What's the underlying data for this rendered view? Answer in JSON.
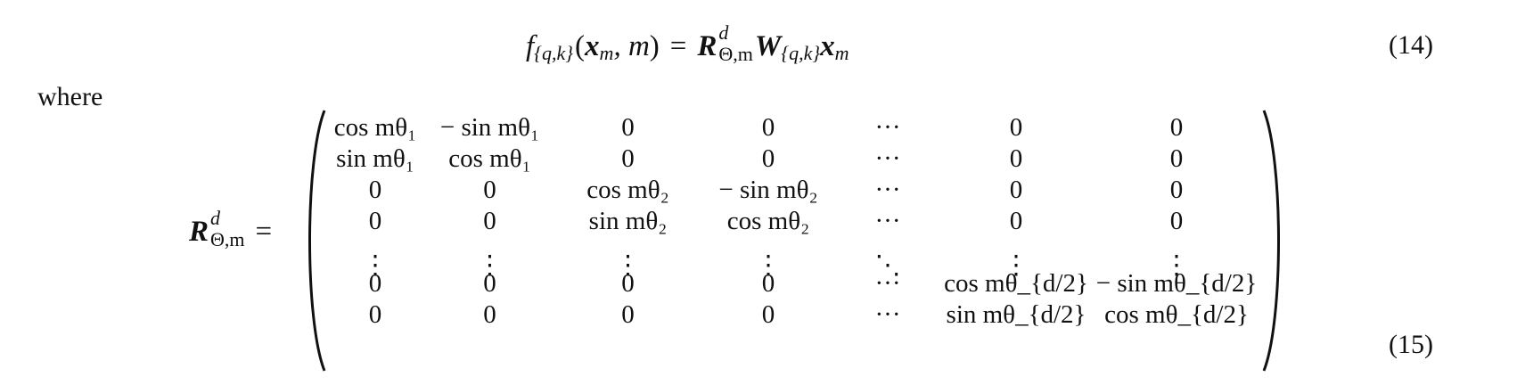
{
  "eq14": {
    "number": "(14)",
    "f": "f",
    "f_sub": "{q,k}",
    "lparen": "(",
    "x": "x",
    "x_sub": "m",
    "comma_m": ", m",
    "rparen": ")",
    "equals": "=",
    "R": "R",
    "R_sup": "d",
    "R_sub": "Θ,m",
    "W": "W",
    "W_sub": "{q,k}",
    "x2": "x",
    "x2_sub": "m"
  },
  "where_text": "where",
  "eq15": {
    "number": "(15)",
    "lhs_R": "R",
    "lhs_sup": "d",
    "lhs_sub": "Θ,m",
    "equals": "=",
    "matrix": [
      [
        "cos mθ₁",
        "− sin mθ₁",
        "0",
        "0",
        "···",
        "0",
        "0"
      ],
      [
        "sin mθ₁",
        "cos mθ₁",
        "0",
        "0",
        "···",
        "0",
        "0"
      ],
      [
        "0",
        "0",
        "cos mθ₂",
        "− sin mθ₂",
        "···",
        "0",
        "0"
      ],
      [
        "0",
        "0",
        "sin mθ₂",
        "cos mθ₂",
        "···",
        "0",
        "0"
      ],
      [
        "⋮",
        "⋮",
        "⋮",
        "⋮",
        "⋱",
        "⋮",
        "⋮"
      ],
      [
        "0",
        "0",
        "0",
        "0",
        "···",
        "cos mθ_{d/2}",
        "− sin mθ_{d/2}"
      ],
      [
        "0",
        "0",
        "0",
        "0",
        "···",
        "sin mθ_{d/2}",
        "cos mθ_{d/2}"
      ]
    ]
  }
}
